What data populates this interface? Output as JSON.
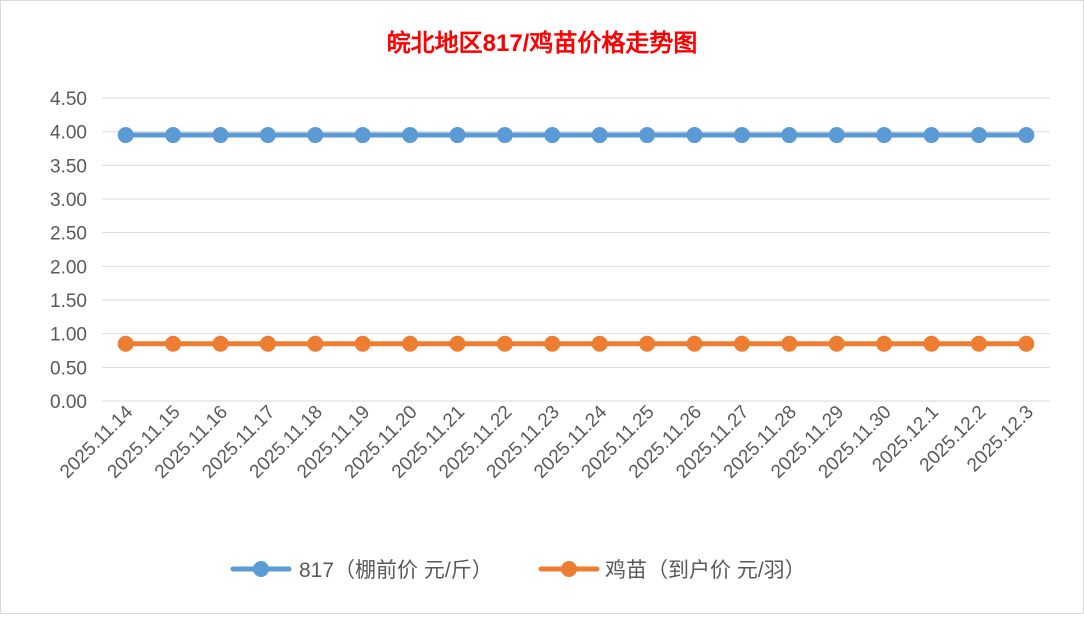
{
  "chart_data": {
    "type": "line",
    "title": "皖北地区817/鸡苗价格走势图",
    "title_color": "#ff0000",
    "categories": [
      "2025.11.14",
      "2025.11.15",
      "2025.11.16",
      "2025.11.17",
      "2025.11.18",
      "2025.11.19",
      "2025.11.20",
      "2025.11.21",
      "2025.11.22",
      "2025.11.23",
      "2025.11.24",
      "2025.11.25",
      "2025.11.26",
      "2025.11.27",
      "2025.11.28",
      "2025.11.29",
      "2025.11.30",
      "2025.12.1",
      "2025.12.2",
      "2025.12.3"
    ],
    "series": [
      {
        "name": "817（棚前价 元/斤）",
        "color": "#5b9bd5",
        "values": [
          3.95,
          3.95,
          3.95,
          3.95,
          3.95,
          3.95,
          3.95,
          3.95,
          3.95,
          3.95,
          3.95,
          3.95,
          3.95,
          3.95,
          3.95,
          3.95,
          3.95,
          3.95,
          3.95,
          3.95
        ]
      },
      {
        "name": "鸡苗（到户价 元/羽）",
        "color": "#ed7d31",
        "values": [
          0.85,
          0.85,
          0.85,
          0.85,
          0.85,
          0.85,
          0.85,
          0.85,
          0.85,
          0.85,
          0.85,
          0.85,
          0.85,
          0.85,
          0.85,
          0.85,
          0.85,
          0.85,
          0.85,
          0.85
        ]
      }
    ],
    "yticks": [
      "0.00",
      "0.50",
      "1.00",
      "1.50",
      "2.00",
      "2.50",
      "3.00",
      "3.50",
      "4.00",
      "4.50"
    ],
    "ylim": [
      0,
      4.5
    ],
    "grid": true,
    "legend": "bottom",
    "xlabel": "",
    "ylabel": ""
  }
}
